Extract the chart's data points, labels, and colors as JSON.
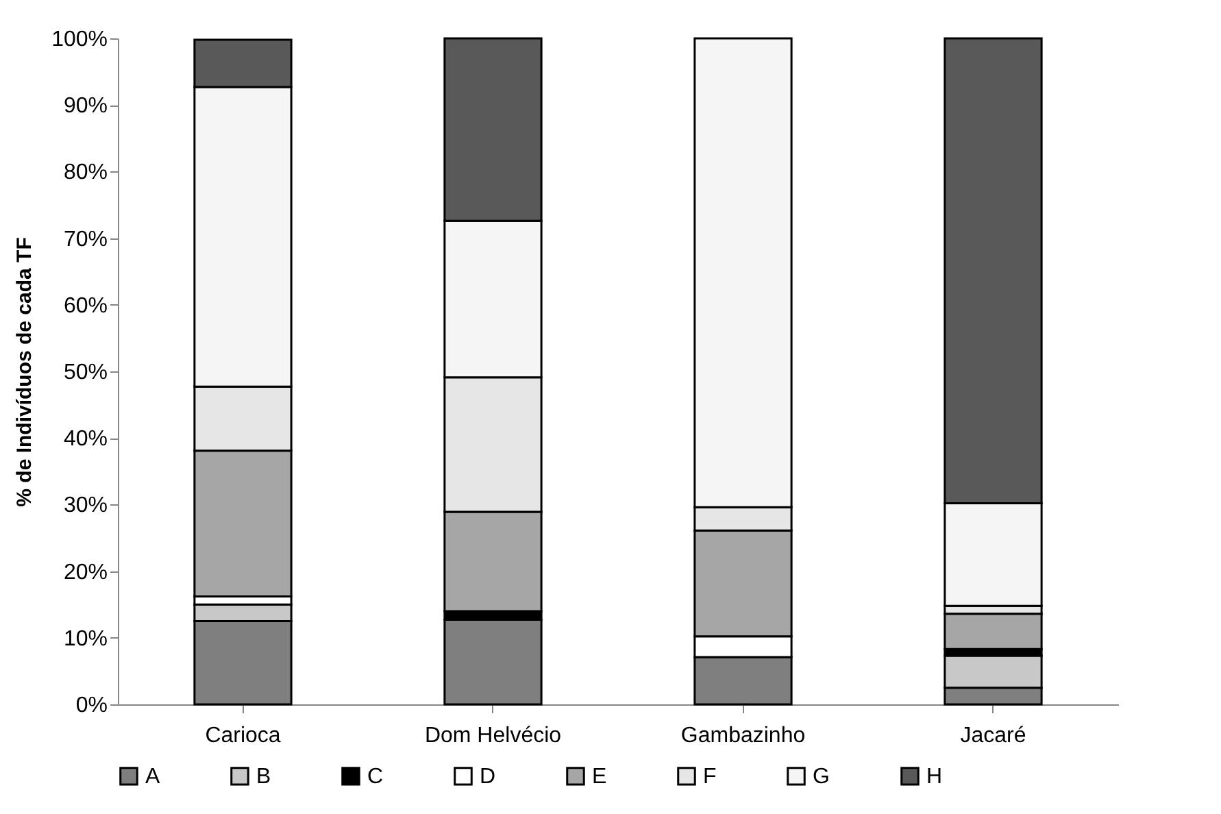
{
  "chart_data": {
    "type": "bar",
    "stacked": true,
    "ylabel": "% de Indivíduos de cada TF",
    "categories": [
      "Carioca",
      "Dom Helvécio",
      "Gambazinho",
      "Jacaré"
    ],
    "series": [
      {
        "name": "A",
        "color": "#7f7f7f",
        "values": [
          12.5,
          12.7,
          7.1,
          2.5
        ]
      },
      {
        "name": "B",
        "color": "#c8c8c8",
        "values": [
          2.5,
          null,
          null,
          4.8
        ]
      },
      {
        "name": "C",
        "color": "#000000",
        "values": [
          null,
          1.3,
          null,
          1.0
        ]
      },
      {
        "name": "D",
        "color": "#ffffff",
        "values": [
          1.2,
          null,
          3.1,
          null
        ]
      },
      {
        "name": "E",
        "color": "#a6a6a6",
        "values": [
          21.9,
          14.9,
          15.9,
          5.3
        ]
      },
      {
        "name": "F",
        "color": "#e6e6e6",
        "values": [
          9.6,
          20.2,
          3.5,
          1.2
        ]
      },
      {
        "name": "G",
        "color": "#f5f5f5",
        "values": [
          45.0,
          23.5,
          70.4,
          15.4
        ]
      },
      {
        "name": "H",
        "color": "#595959",
        "values": [
          7.1,
          27.4,
          null,
          69.8
        ]
      }
    ],
    "ylim": [
      0,
      100
    ],
    "yticks": [
      {
        "value": 0,
        "label": "0%"
      },
      {
        "value": 10,
        "label": "10%"
      },
      {
        "value": 20,
        "label": "20%"
      },
      {
        "value": 30,
        "label": "30%"
      },
      {
        "value": 40,
        "label": "40%"
      },
      {
        "value": 50,
        "label": "50%"
      },
      {
        "value": 60,
        "label": "60%"
      },
      {
        "value": 70,
        "label": "70%"
      },
      {
        "value": 80,
        "label": "80%"
      },
      {
        "value": 90,
        "label": "90%"
      },
      {
        "value": 100,
        "label": "100%"
      }
    ],
    "grid": false,
    "legend": "bottom"
  }
}
